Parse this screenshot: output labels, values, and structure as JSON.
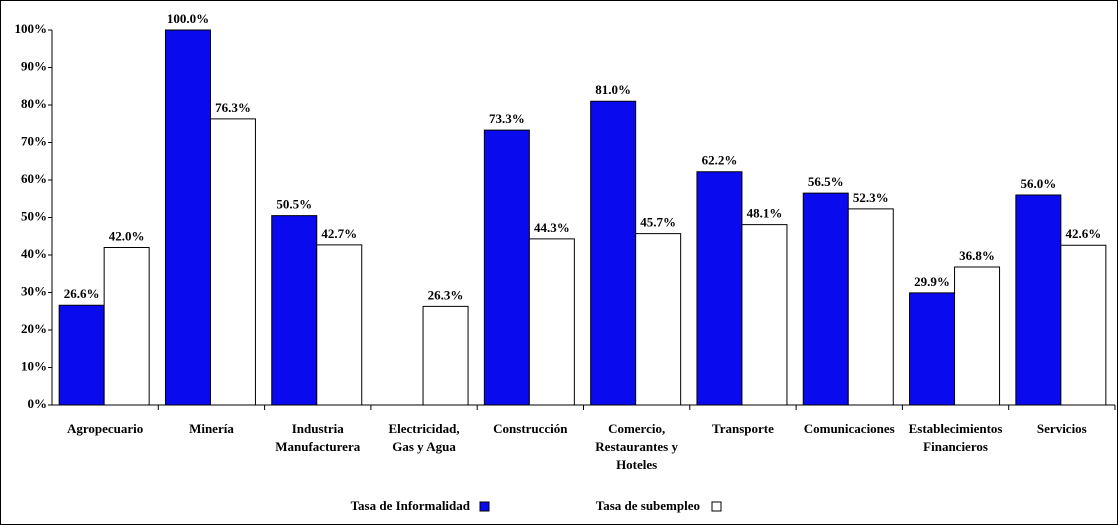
{
  "chart_data": {
    "type": "bar",
    "categories": [
      "Agropecuario",
      "Minería",
      "Industria\nManufacturera",
      "Electricidad,\nGas y Agua",
      "Construcción",
      "Comercio,\nRestaurantes y\nHoteles",
      "Transporte",
      "Comunicaciones",
      "Establecimientos\nFinancieros",
      "Servicios"
    ],
    "series": [
      {
        "name": "Tasa de Informalidad",
        "color": "#0a0aee",
        "values": [
          26.6,
          100.0,
          50.5,
          null,
          73.3,
          81.0,
          62.2,
          56.5,
          29.9,
          56.0
        ],
        "value_labels": [
          "26.6%",
          "100.0%",
          "50.5%",
          null,
          "73.3%",
          "81.0%",
          "62.2%",
          "56.5%",
          "29.9%",
          "56.0%"
        ]
      },
      {
        "name": "Tasa de subempleo",
        "color": "#ffffff",
        "values": [
          42.0,
          76.3,
          42.7,
          26.3,
          44.3,
          45.7,
          48.1,
          52.3,
          36.8,
          42.6
        ],
        "value_labels": [
          "42.0%",
          "76.3%",
          "42.7%",
          "26.3%",
          "44.3%",
          "45.7%",
          "48.1%",
          "52.3%",
          "36.8%",
          "42.6%"
        ]
      }
    ],
    "ylim": [
      0,
      100
    ],
    "yticks": [
      {
        "value": 0,
        "label": "0%"
      },
      {
        "value": 10,
        "label": "10%"
      },
      {
        "value": 20,
        "label": "20%"
      },
      {
        "value": 30,
        "label": "30%"
      },
      {
        "value": 40,
        "label": "40%"
      },
      {
        "value": 50,
        "label": "50%"
      },
      {
        "value": 60,
        "label": "60%"
      },
      {
        "value": 70,
        "label": "70%"
      },
      {
        "value": 80,
        "label": "80%"
      },
      {
        "value": 90,
        "label": "90%"
      },
      {
        "value": 100,
        "label": "100%"
      }
    ],
    "grid": false,
    "legend": "bottom"
  }
}
